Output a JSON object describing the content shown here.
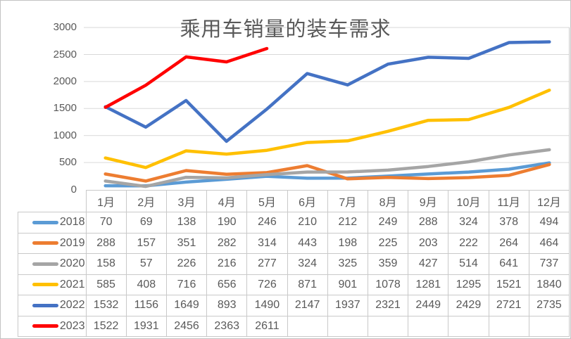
{
  "chart_data": {
    "type": "line",
    "title": "乘用车销量的装车需求",
    "xlabel": "",
    "ylabel": "",
    "ylim": [
      0,
      3000
    ],
    "y_ticks": [
      0,
      500,
      1000,
      1500,
      2000,
      2500,
      3000
    ],
    "grid": "horizontal",
    "legend_position": "data-table-left-column",
    "gridline_color": "#d9d9d9",
    "axis_label_color": "#595959",
    "title_color": "#595959",
    "categories": [
      "1月",
      "2月",
      "3月",
      "4月",
      "5月",
      "6月",
      "7月",
      "8月",
      "9月",
      "10月",
      "11月",
      "12月"
    ],
    "series": [
      {
        "name": "2018",
        "color": "#5B9BD5",
        "values": [
          70,
          69,
          138,
          190,
          246,
          210,
          212,
          249,
          288,
          324,
          378,
          494
        ]
      },
      {
        "name": "2019",
        "color": "#ED7D31",
        "values": [
          288,
          157,
          351,
          282,
          314,
          443,
          198,
          225,
          203,
          222,
          264,
          464
        ]
      },
      {
        "name": "2020",
        "color": "#A5A5A5",
        "values": [
          158,
          57,
          226,
          216,
          277,
          324,
          325,
          359,
          427,
          514,
          641,
          737
        ]
      },
      {
        "name": "2021",
        "color": "#FFC000",
        "values": [
          585,
          408,
          716,
          656,
          726,
          871,
          901,
          1078,
          1281,
          1295,
          1521,
          1840
        ]
      },
      {
        "name": "2022",
        "color": "#4472C4",
        "values": [
          1532,
          1156,
          1649,
          893,
          1490,
          2147,
          1937,
          2321,
          2449,
          2429,
          2721,
          2735
        ]
      },
      {
        "name": "2023",
        "color": "#FF0000",
        "values": [
          1522,
          1931,
          2456,
          2363,
          2611
        ]
      }
    ]
  }
}
